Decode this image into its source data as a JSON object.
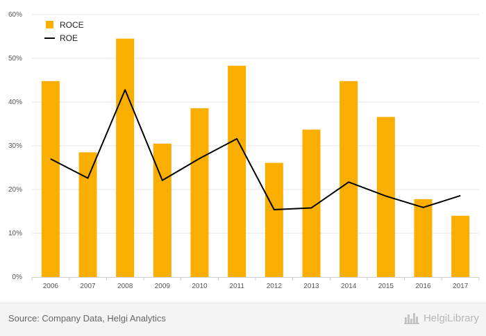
{
  "chart_data": {
    "type": "bar",
    "categories": [
      "2006",
      "2007",
      "2008",
      "2009",
      "2010",
      "2011",
      "2012",
      "2013",
      "2014",
      "2015",
      "2016",
      "2017"
    ],
    "series": [
      {
        "name": "ROCE",
        "type": "bar",
        "values": [
          44.8,
          28.5,
          54.5,
          30.5,
          38.6,
          48.3,
          26.1,
          33.7,
          44.8,
          36.6,
          17.8,
          14.0
        ]
      },
      {
        "name": "ROE",
        "type": "line",
        "values": [
          27.0,
          22.6,
          42.8,
          22.1,
          27.1,
          31.6,
          15.4,
          15.8,
          21.7,
          18.5,
          15.9,
          18.6
        ]
      }
    ],
    "ylim": [
      0,
      60
    ],
    "yticks": [
      "0%",
      "10%",
      "20%",
      "30%",
      "40%",
      "50%",
      "60%"
    ],
    "grid": true,
    "legend": "top-left"
  },
  "colors": {
    "bar": "#f9ae00",
    "line": "#000000",
    "grid": "#e6e6e6"
  },
  "footer": {
    "source": "Source: Company Data, Helgi Analytics",
    "brand": "HelgiLibrary",
    "brand_icon": "city-skyline-icon"
  }
}
